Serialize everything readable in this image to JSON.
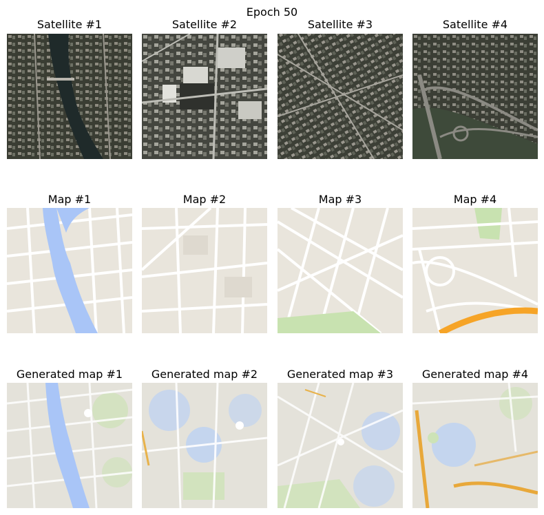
{
  "figure": {
    "suptitle": "Epoch 50"
  },
  "rows": [
    {
      "kind": "satellite",
      "titles": [
        "Satellite #1",
        "Satellite #2",
        "Satellite #3",
        "Satellite #4"
      ]
    },
    {
      "kind": "map",
      "titles": [
        "Map #1",
        "Map #2",
        "Map #3",
        "Map #4"
      ]
    },
    {
      "kind": "generated",
      "titles": [
        "Generated map #1",
        "Generated map #2",
        "Generated map #3",
        "Generated map #4"
      ]
    }
  ],
  "colors": {
    "map_background": "#e9e5dc",
    "map_road": "#ffffff",
    "map_water": "#a9c5f7",
    "map_park": "#c8e2b0",
    "map_highway": "#f6a427",
    "satellite_dark": "#2e3128",
    "satellite_roof": "#8f9088"
  }
}
